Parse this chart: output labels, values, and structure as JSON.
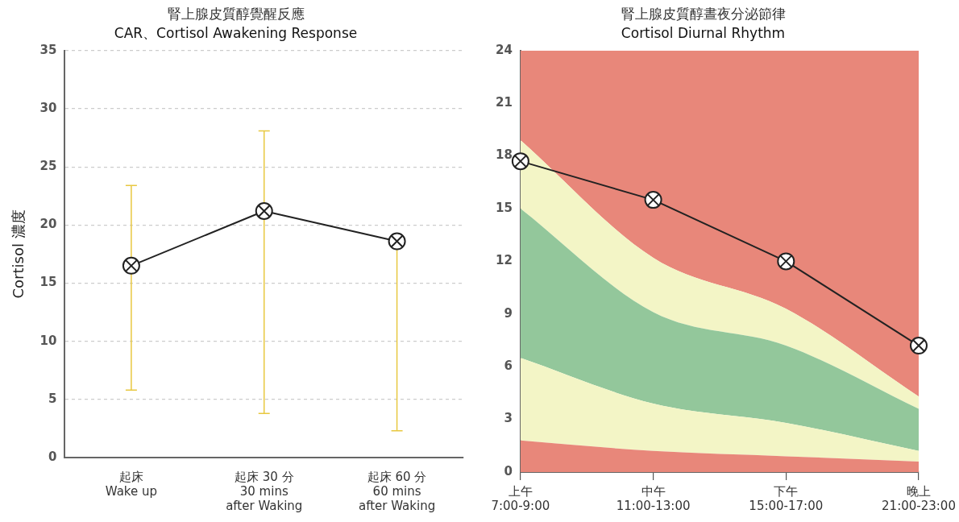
{
  "chart_data": [
    {
      "type": "line",
      "title": "腎上腺皮質醇覺醒反應",
      "subtitle": "CAR、Cortisol Awakening Response",
      "ylabel": "Cortisol 濃度",
      "categories": [
        "起床\nWake up",
        "起床 30 分\n30 mins\nafter Waking",
        "起床 60 分\n60 mins\nafter Waking"
      ],
      "values": [
        16.5,
        21.2,
        18.6
      ],
      "color": "#222222",
      "errors": [
        [
          5.8,
          23.4
        ],
        [
          3.8,
          28.1
        ],
        [
          2.3,
          18.6
        ]
      ],
      "ylim": [
        0,
        35
      ],
      "yticks": [
        0,
        5,
        10,
        15,
        20,
        25,
        30,
        35
      ],
      "grid": "y",
      "marker": "circle"
    },
    {
      "type": "area",
      "title": "腎上腺皮質醇晝夜分泌節律",
      "subtitle": "Cortisol Diurnal Rhythm",
      "stacked": true,
      "categories": [
        "上午\n7:00-9:00",
        "中午\n11:00-13:00",
        "下午\n15:00-17:00",
        "晚上\n21:00-23:00"
      ],
      "series": [
        {
          "color": "#e8877a",
          "values": [
            1.8,
            1.2,
            0.9,
            0.6
          ]
        },
        {
          "color": "#f3f5c6",
          "values": [
            4.7,
            2.7,
            1.9,
            0.6
          ]
        },
        {
          "color": "#93c79b",
          "values": [
            8.5,
            5.2,
            4.4,
            2.4
          ]
        },
        {
          "color": "#f3f5c6",
          "values": [
            3.9,
            3.1,
            2.1,
            0.7
          ]
        },
        {
          "color": "#e8877a",
          "values": [
            5.1,
            11.8,
            14.7,
            19.7
          ]
        },
        {
          "type": "line",
          "marker": "circle",
          "color": "#222222",
          "values": [
            17.7,
            15.5,
            12.0,
            7.2
          ]
        }
      ],
      "ylim": [
        0,
        24
      ],
      "yticks": [
        0,
        3,
        6,
        9,
        12,
        15,
        18,
        21,
        24
      ],
      "grid": true
    }
  ]
}
